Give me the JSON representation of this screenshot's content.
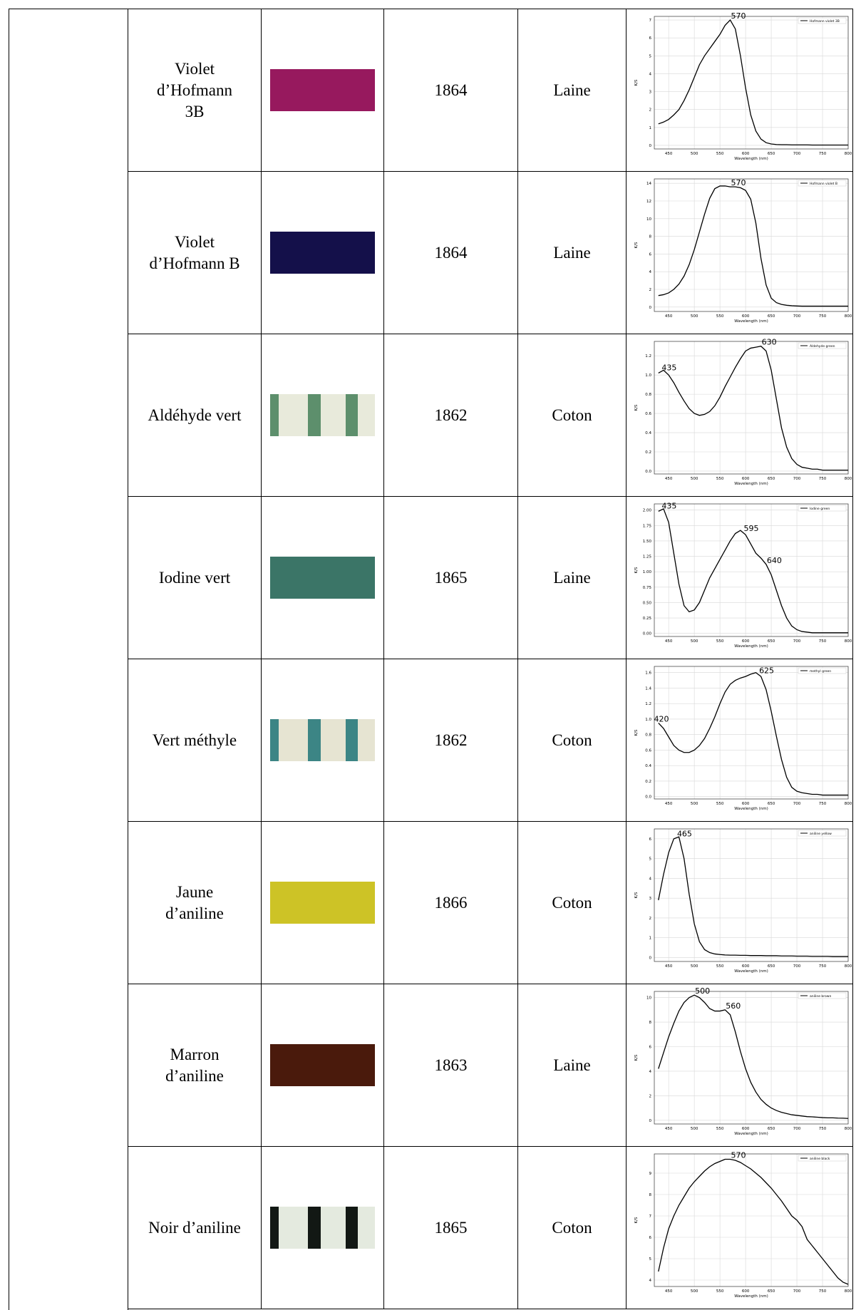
{
  "table": {
    "rows": [
      {
        "name": [
          "Violet",
          "d’Hofmann",
          "3B"
        ],
        "swatch": [
          "#97195e"
        ],
        "year": 1864,
        "fiber": "Laine"
      },
      {
        "name": [
          "Violet",
          "d’Hofmann B"
        ],
        "swatch": [
          "#14104a"
        ],
        "year": 1864,
        "fiber": "Laine"
      },
      {
        "name": [
          "Aldéhyde vert"
        ],
        "swatch": [
          "#5d8f6c",
          "#e8eadb"
        ],
        "year": 1862,
        "fiber": "Coton"
      },
      {
        "name": [
          "Iodine vert"
        ],
        "swatch": [
          "#3b7567"
        ],
        "year": 1865,
        "fiber": "Laine"
      },
      {
        "name": [
          "Vert méthyle"
        ],
        "swatch": [
          "#3c8585",
          "#e6e4d2"
        ],
        "year": 1862,
        "fiber": "Coton"
      },
      {
        "name": [
          "Jaune",
          "d’aniline"
        ],
        "swatch": [
          "#cdc326"
        ],
        "year": 1866,
        "fiber": "Coton"
      },
      {
        "name": [
          "Marron",
          "d’aniline"
        ],
        "swatch": [
          "#4a1a0c"
        ],
        "year": 1863,
        "fiber": "Laine"
      },
      {
        "name": [
          "Noir d’aniline"
        ],
        "swatch": [
          "#121814",
          "#e4eadf"
        ],
        "year": 1865,
        "fiber": "Coton"
      }
    ]
  },
  "chart_data": [
    {
      "type": "line",
      "x_label": "Wavelength (nm)",
      "y_label": "K/S",
      "xlim": [
        422,
        800
      ],
      "ylim": [
        -0.2,
        7.2
      ],
      "xticks": [
        450,
        500,
        550,
        600,
        650,
        700,
        750,
        800
      ],
      "yticks": [
        0,
        1,
        2,
        3,
        4,
        5,
        6,
        7
      ],
      "grid": true,
      "x": [
        430,
        440,
        450,
        460,
        470,
        480,
        490,
        500,
        510,
        520,
        530,
        540,
        550,
        560,
        570,
        580,
        590,
        600,
        610,
        620,
        630,
        640,
        650,
        660,
        670,
        680,
        690,
        700,
        710,
        720,
        730,
        740,
        750,
        760,
        770,
        780,
        790,
        800
      ],
      "series": [
        {
          "name": "Hofmann violet 3B",
          "color": "#000000",
          "values": [
            1.2,
            1.3,
            1.45,
            1.7,
            2.0,
            2.5,
            3.1,
            3.8,
            4.5,
            5.0,
            5.4,
            5.8,
            6.2,
            6.7,
            7.0,
            6.5,
            5.0,
            3.2,
            1.7,
            0.8,
            0.35,
            0.15,
            0.08,
            0.05,
            0.04,
            0.04,
            0.03,
            0.03,
            0.03,
            0.03,
            0.02,
            0.02,
            0.02,
            0.02,
            0.02,
            0.02,
            0.02,
            0.02
          ]
        }
      ],
      "annotations": [
        {
          "label": "570",
          "x": 570
        }
      ]
    },
    {
      "type": "line",
      "x_label": "Wavelength (nm)",
      "y_label": "K/S",
      "xlim": [
        422,
        800
      ],
      "ylim": [
        -0.5,
        14.5
      ],
      "xticks": [
        450,
        500,
        550,
        600,
        650,
        700,
        750,
        800
      ],
      "yticks": [
        0,
        2,
        4,
        6,
        8,
        10,
        12,
        14
      ],
      "grid": true,
      "x": [
        430,
        440,
        450,
        460,
        470,
        480,
        490,
        500,
        510,
        520,
        530,
        540,
        550,
        560,
        570,
        580,
        590,
        600,
        610,
        620,
        630,
        640,
        650,
        660,
        670,
        680,
        690,
        700,
        710,
        720,
        730,
        740,
        750,
        760,
        770,
        780,
        790,
        800
      ],
      "series": [
        {
          "name": "Hofmann violet B",
          "color": "#000000",
          "values": [
            1.3,
            1.4,
            1.6,
            2.0,
            2.6,
            3.5,
            4.8,
            6.5,
            8.5,
            10.5,
            12.3,
            13.4,
            13.7,
            13.7,
            13.6,
            13.6,
            13.5,
            13.2,
            12.2,
            9.5,
            5.5,
            2.5,
            1.0,
            0.5,
            0.3,
            0.2,
            0.15,
            0.12,
            0.1,
            0.1,
            0.1,
            0.1,
            0.1,
            0.1,
            0.1,
            0.1,
            0.1,
            0.1
          ]
        }
      ],
      "annotations": [
        {
          "label": "570",
          "x": 570
        }
      ]
    },
    {
      "type": "line",
      "x_label": "Wavelength (nm)",
      "y_label": "K/S",
      "xlim": [
        422,
        800
      ],
      "ylim": [
        -0.03,
        1.35
      ],
      "xticks": [
        450,
        500,
        550,
        600,
        650,
        700,
        750,
        800
      ],
      "yticks": [
        {
          "value": 0,
          "label": "0.0"
        },
        0.2,
        0.4,
        0.6,
        0.8,
        {
          "value": 1,
          "label": "1.0"
        },
        1.2
      ],
      "grid": true,
      "x": [
        430,
        440,
        450,
        460,
        470,
        480,
        490,
        500,
        510,
        520,
        530,
        540,
        550,
        560,
        570,
        580,
        590,
        600,
        610,
        620,
        630,
        640,
        650,
        660,
        670,
        680,
        690,
        700,
        710,
        720,
        730,
        740,
        750,
        760,
        770,
        780,
        790,
        800
      ],
      "series": [
        {
          "name": "Aldehyde green",
          "color": "#000000",
          "values": [
            1.02,
            1.05,
            1.0,
            0.92,
            0.82,
            0.73,
            0.65,
            0.6,
            0.58,
            0.59,
            0.62,
            0.68,
            0.77,
            0.88,
            0.98,
            1.08,
            1.17,
            1.25,
            1.28,
            1.29,
            1.3,
            1.25,
            1.05,
            0.75,
            0.45,
            0.25,
            0.13,
            0.07,
            0.04,
            0.03,
            0.02,
            0.02,
            0.01,
            0.01,
            0.01,
            0.01,
            0.01,
            0.01
          ]
        }
      ],
      "annotations": [
        {
          "label": "435",
          "x": 435
        },
        {
          "label": "630",
          "x": 630
        }
      ]
    },
    {
      "type": "line",
      "x_label": "Wavelength (nm)",
      "y_label": "K/S",
      "xlim": [
        422,
        800
      ],
      "ylim": [
        -0.05,
        2.1
      ],
      "xticks": [
        450,
        500,
        550,
        600,
        650,
        700,
        750,
        800
      ],
      "yticks": [
        {
          "value": 0,
          "label": "0.00"
        },
        0.25,
        {
          "value": 0.5,
          "label": "0.50"
        },
        0.75,
        {
          "value": 1,
          "label": "1.00"
        },
        1.25,
        {
          "value": 1.5,
          "label": "1.50"
        },
        1.75,
        {
          "value": 2,
          "label": "2.00"
        }
      ],
      "grid": true,
      "x": [
        430,
        440,
        450,
        460,
        470,
        480,
        490,
        500,
        510,
        520,
        530,
        540,
        550,
        560,
        570,
        580,
        590,
        600,
        610,
        620,
        630,
        640,
        650,
        660,
        670,
        680,
        690,
        700,
        710,
        720,
        730,
        740,
        750,
        760,
        770,
        780,
        790,
        800
      ],
      "series": [
        {
          "name": "Iodine green",
          "color": "#000000",
          "values": [
            1.98,
            2.02,
            1.8,
            1.3,
            0.8,
            0.45,
            0.35,
            0.38,
            0.5,
            0.7,
            0.9,
            1.05,
            1.2,
            1.35,
            1.5,
            1.62,
            1.67,
            1.6,
            1.45,
            1.3,
            1.22,
            1.12,
            0.95,
            0.7,
            0.45,
            0.25,
            0.12,
            0.06,
            0.03,
            0.02,
            0.01,
            0.01,
            0.01,
            0.01,
            0.01,
            0.01,
            0.01,
            0.01
          ]
        }
      ],
      "annotations": [
        {
          "label": "435",
          "x": 435
        },
        {
          "label": "595",
          "x": 595
        },
        {
          "label": "640",
          "x": 640
        }
      ]
    },
    {
      "type": "line",
      "x_label": "Wavelength (nm)",
      "y_label": "K/S",
      "xlim": [
        422,
        800
      ],
      "ylim": [
        -0.03,
        1.68
      ],
      "xticks": [
        450,
        500,
        550,
        600,
        650,
        700,
        750,
        800
      ],
      "yticks": [
        {
          "value": 0,
          "label": "0.0"
        },
        0.2,
        0.4,
        0.6,
        0.8,
        {
          "value": 1,
          "label": "1.0"
        },
        1.2,
        1.4,
        1.6
      ],
      "grid": true,
      "x": [
        430,
        440,
        450,
        460,
        470,
        480,
        490,
        500,
        510,
        520,
        530,
        540,
        550,
        560,
        570,
        580,
        590,
        600,
        610,
        620,
        630,
        640,
        650,
        660,
        670,
        680,
        690,
        700,
        710,
        720,
        730,
        740,
        750,
        760,
        770,
        780,
        790,
        800
      ],
      "series": [
        {
          "name": "methyl green",
          "color": "#000000",
          "values": [
            0.95,
            0.88,
            0.77,
            0.66,
            0.6,
            0.57,
            0.57,
            0.6,
            0.66,
            0.75,
            0.88,
            1.03,
            1.2,
            1.35,
            1.45,
            1.5,
            1.53,
            1.55,
            1.58,
            1.6,
            1.55,
            1.38,
            1.1,
            0.78,
            0.48,
            0.25,
            0.12,
            0.07,
            0.05,
            0.04,
            0.03,
            0.03,
            0.02,
            0.02,
            0.02,
            0.02,
            0.02,
            0.02
          ]
        }
      ],
      "annotations": [
        {
          "label": "420",
          "x": 420
        },
        {
          "label": "625",
          "x": 625
        }
      ]
    },
    {
      "type": "line",
      "x_label": "Wavelength (nm)",
      "y_label": "K/S",
      "xlim": [
        422,
        800
      ],
      "ylim": [
        -0.2,
        6.5
      ],
      "xticks": [
        450,
        500,
        550,
        600,
        650,
        700,
        750,
        800
      ],
      "yticks": [
        0,
        1,
        2,
        3,
        4,
        5,
        6
      ],
      "grid": true,
      "x": [
        430,
        440,
        450,
        460,
        470,
        480,
        490,
        500,
        510,
        520,
        530,
        540,
        550,
        560,
        570,
        580,
        590,
        600,
        610,
        620,
        630,
        640,
        650,
        660,
        670,
        680,
        690,
        700,
        710,
        720,
        730,
        740,
        750,
        760,
        770,
        780,
        790,
        800
      ],
      "series": [
        {
          "name": "aniline yellow",
          "color": "#000000",
          "values": [
            2.9,
            4.2,
            5.3,
            6.0,
            6.1,
            5.0,
            3.2,
            1.7,
            0.8,
            0.4,
            0.25,
            0.18,
            0.15,
            0.13,
            0.12,
            0.12,
            0.11,
            0.11,
            0.1,
            0.1,
            0.1,
            0.09,
            0.09,
            0.09,
            0.08,
            0.08,
            0.08,
            0.07,
            0.07,
            0.07,
            0.06,
            0.06,
            0.06,
            0.06,
            0.05,
            0.05,
            0.05,
            0.05
          ]
        }
      ],
      "annotations": [
        {
          "label": "465",
          "x": 465
        }
      ]
    },
    {
      "type": "line",
      "x_label": "Wavelength (nm)",
      "y_label": "K/S",
      "xlim": [
        422,
        800
      ],
      "ylim": [
        -0.3,
        10.5
      ],
      "xticks": [
        450,
        500,
        550,
        600,
        650,
        700,
        750,
        800
      ],
      "yticks": [
        0,
        2,
        4,
        6,
        8,
        10
      ],
      "grid": true,
      "x": [
        430,
        440,
        450,
        460,
        470,
        480,
        490,
        500,
        510,
        520,
        530,
        540,
        550,
        560,
        570,
        580,
        590,
        600,
        610,
        620,
        630,
        640,
        650,
        660,
        670,
        680,
        690,
        700,
        710,
        720,
        730,
        740,
        750,
        760,
        770,
        780,
        790,
        800
      ],
      "series": [
        {
          "name": "aniline brown",
          "color": "#000000",
          "values": [
            4.2,
            5.5,
            6.8,
            7.9,
            8.9,
            9.6,
            10.0,
            10.2,
            10.0,
            9.6,
            9.1,
            8.9,
            8.9,
            9.0,
            8.6,
            7.2,
            5.6,
            4.2,
            3.1,
            2.3,
            1.7,
            1.3,
            1.0,
            0.8,
            0.65,
            0.55,
            0.45,
            0.4,
            0.35,
            0.3,
            0.28,
            0.25,
            0.22,
            0.2,
            0.2,
            0.18,
            0.17,
            0.15
          ]
        }
      ],
      "annotations": [
        {
          "label": "500",
          "x": 500
        },
        {
          "label": "560",
          "x": 560
        }
      ]
    },
    {
      "type": "line",
      "x_label": "Wavelength (nm)",
      "y_label": "K/S",
      "xlim": [
        422,
        800
      ],
      "ylim": [
        3.7,
        9.9
      ],
      "xticks": [
        450,
        500,
        550,
        600,
        650,
        700,
        750,
        800
      ],
      "yticks": [
        4,
        5,
        6,
        7,
        8,
        9
      ],
      "grid": true,
      "x": [
        430,
        440,
        450,
        460,
        470,
        480,
        490,
        500,
        510,
        520,
        530,
        540,
        550,
        560,
        570,
        580,
        590,
        600,
        610,
        620,
        630,
        640,
        650,
        660,
        670,
        680,
        690,
        700,
        710,
        720,
        730,
        740,
        750,
        760,
        770,
        780,
        790,
        800
      ],
      "series": [
        {
          "name": "aniline black",
          "color": "#000000",
          "values": [
            4.4,
            5.5,
            6.4,
            7.0,
            7.5,
            7.9,
            8.3,
            8.6,
            8.85,
            9.1,
            9.3,
            9.45,
            9.55,
            9.65,
            9.65,
            9.6,
            9.5,
            9.35,
            9.2,
            9.0,
            8.8,
            8.55,
            8.3,
            8.0,
            7.7,
            7.35,
            7.0,
            6.8,
            6.5,
            5.9,
            5.6,
            5.3,
            5.0,
            4.7,
            4.4,
            4.1,
            3.9,
            3.8
          ]
        }
      ],
      "annotations": [
        {
          "label": "570",
          "x": 570
        }
      ]
    }
  ]
}
